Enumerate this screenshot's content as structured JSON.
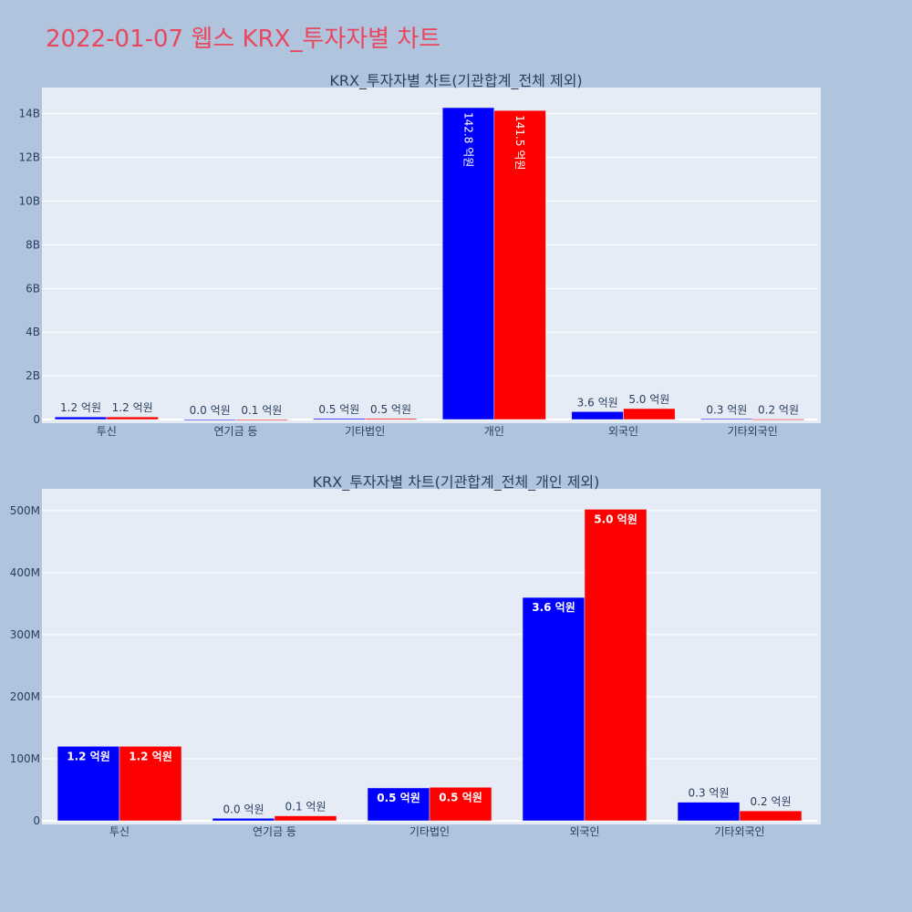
{
  "page_title": "2022-01-07 웹스 KRX_투자자별 차트",
  "colors": {
    "series_a": "#0000ff",
    "series_b": "#ff0000",
    "plot_bg": "#e5ecf6",
    "page_bg": "#b0c4de",
    "title": "#e8475f"
  },
  "chart_data": [
    {
      "type": "bar",
      "title": "KRX_투자자별 차트(기관합계_전체 제외)",
      "categories": [
        "투신",
        "연기금 등",
        "기타법인",
        "개인",
        "외국인",
        "기타외국인"
      ],
      "series": [
        {
          "values": [
            120000000,
            4000000,
            50000000,
            14280000000,
            360000000,
            30000000
          ],
          "labels": [
            "1.2 억원",
            "0.0 억원",
            "0.5 억원",
            "142.8 억원",
            "3.6 억원",
            "0.3 억원"
          ]
        },
        {
          "values": [
            120000000,
            8000000,
            50000000,
            14150000000,
            500000000,
            20000000
          ],
          "labels": [
            "1.2 억원",
            "0.1 억원",
            "0.5 억원",
            "141.5 억원",
            "5.0 억원",
            "0.2 억원"
          ]
        }
      ],
      "ylim": [
        0,
        15200000000
      ],
      "yticks": [
        0,
        2000000000,
        4000000000,
        6000000000,
        8000000000,
        10000000000,
        12000000000,
        14000000000
      ],
      "ytick_labels": [
        "0",
        "2B",
        "4B",
        "6B",
        "8B",
        "10B",
        "12B",
        "14B"
      ],
      "grid": true
    },
    {
      "type": "bar",
      "title": "KRX_투자자별 차트(기관합계_전체_개인 제외)",
      "categories": [
        "투신",
        "연기금 등",
        "기타법인",
        "외국인",
        "기타외국인"
      ],
      "series": [
        {
          "values": [
            120000000,
            4000000,
            53000000,
            360000000,
            30000000
          ],
          "labels": [
            "1.2 억원",
            "0.0 억원",
            "0.5 억원",
            "3.6 억원",
            "0.3 억원"
          ]
        },
        {
          "values": [
            120000000,
            8000000,
            54000000,
            502000000,
            16000000
          ],
          "labels": [
            "1.2 억원",
            "0.1 억원",
            "0.5 억원",
            "5.0 억원",
            "0.2 억원"
          ]
        }
      ],
      "ylim": [
        0,
        535000000
      ],
      "yticks": [
        0,
        100000000,
        200000000,
        300000000,
        400000000,
        500000000
      ],
      "ytick_labels": [
        "0",
        "100M",
        "200M",
        "300M",
        "400M",
        "500M"
      ],
      "grid": true
    }
  ]
}
